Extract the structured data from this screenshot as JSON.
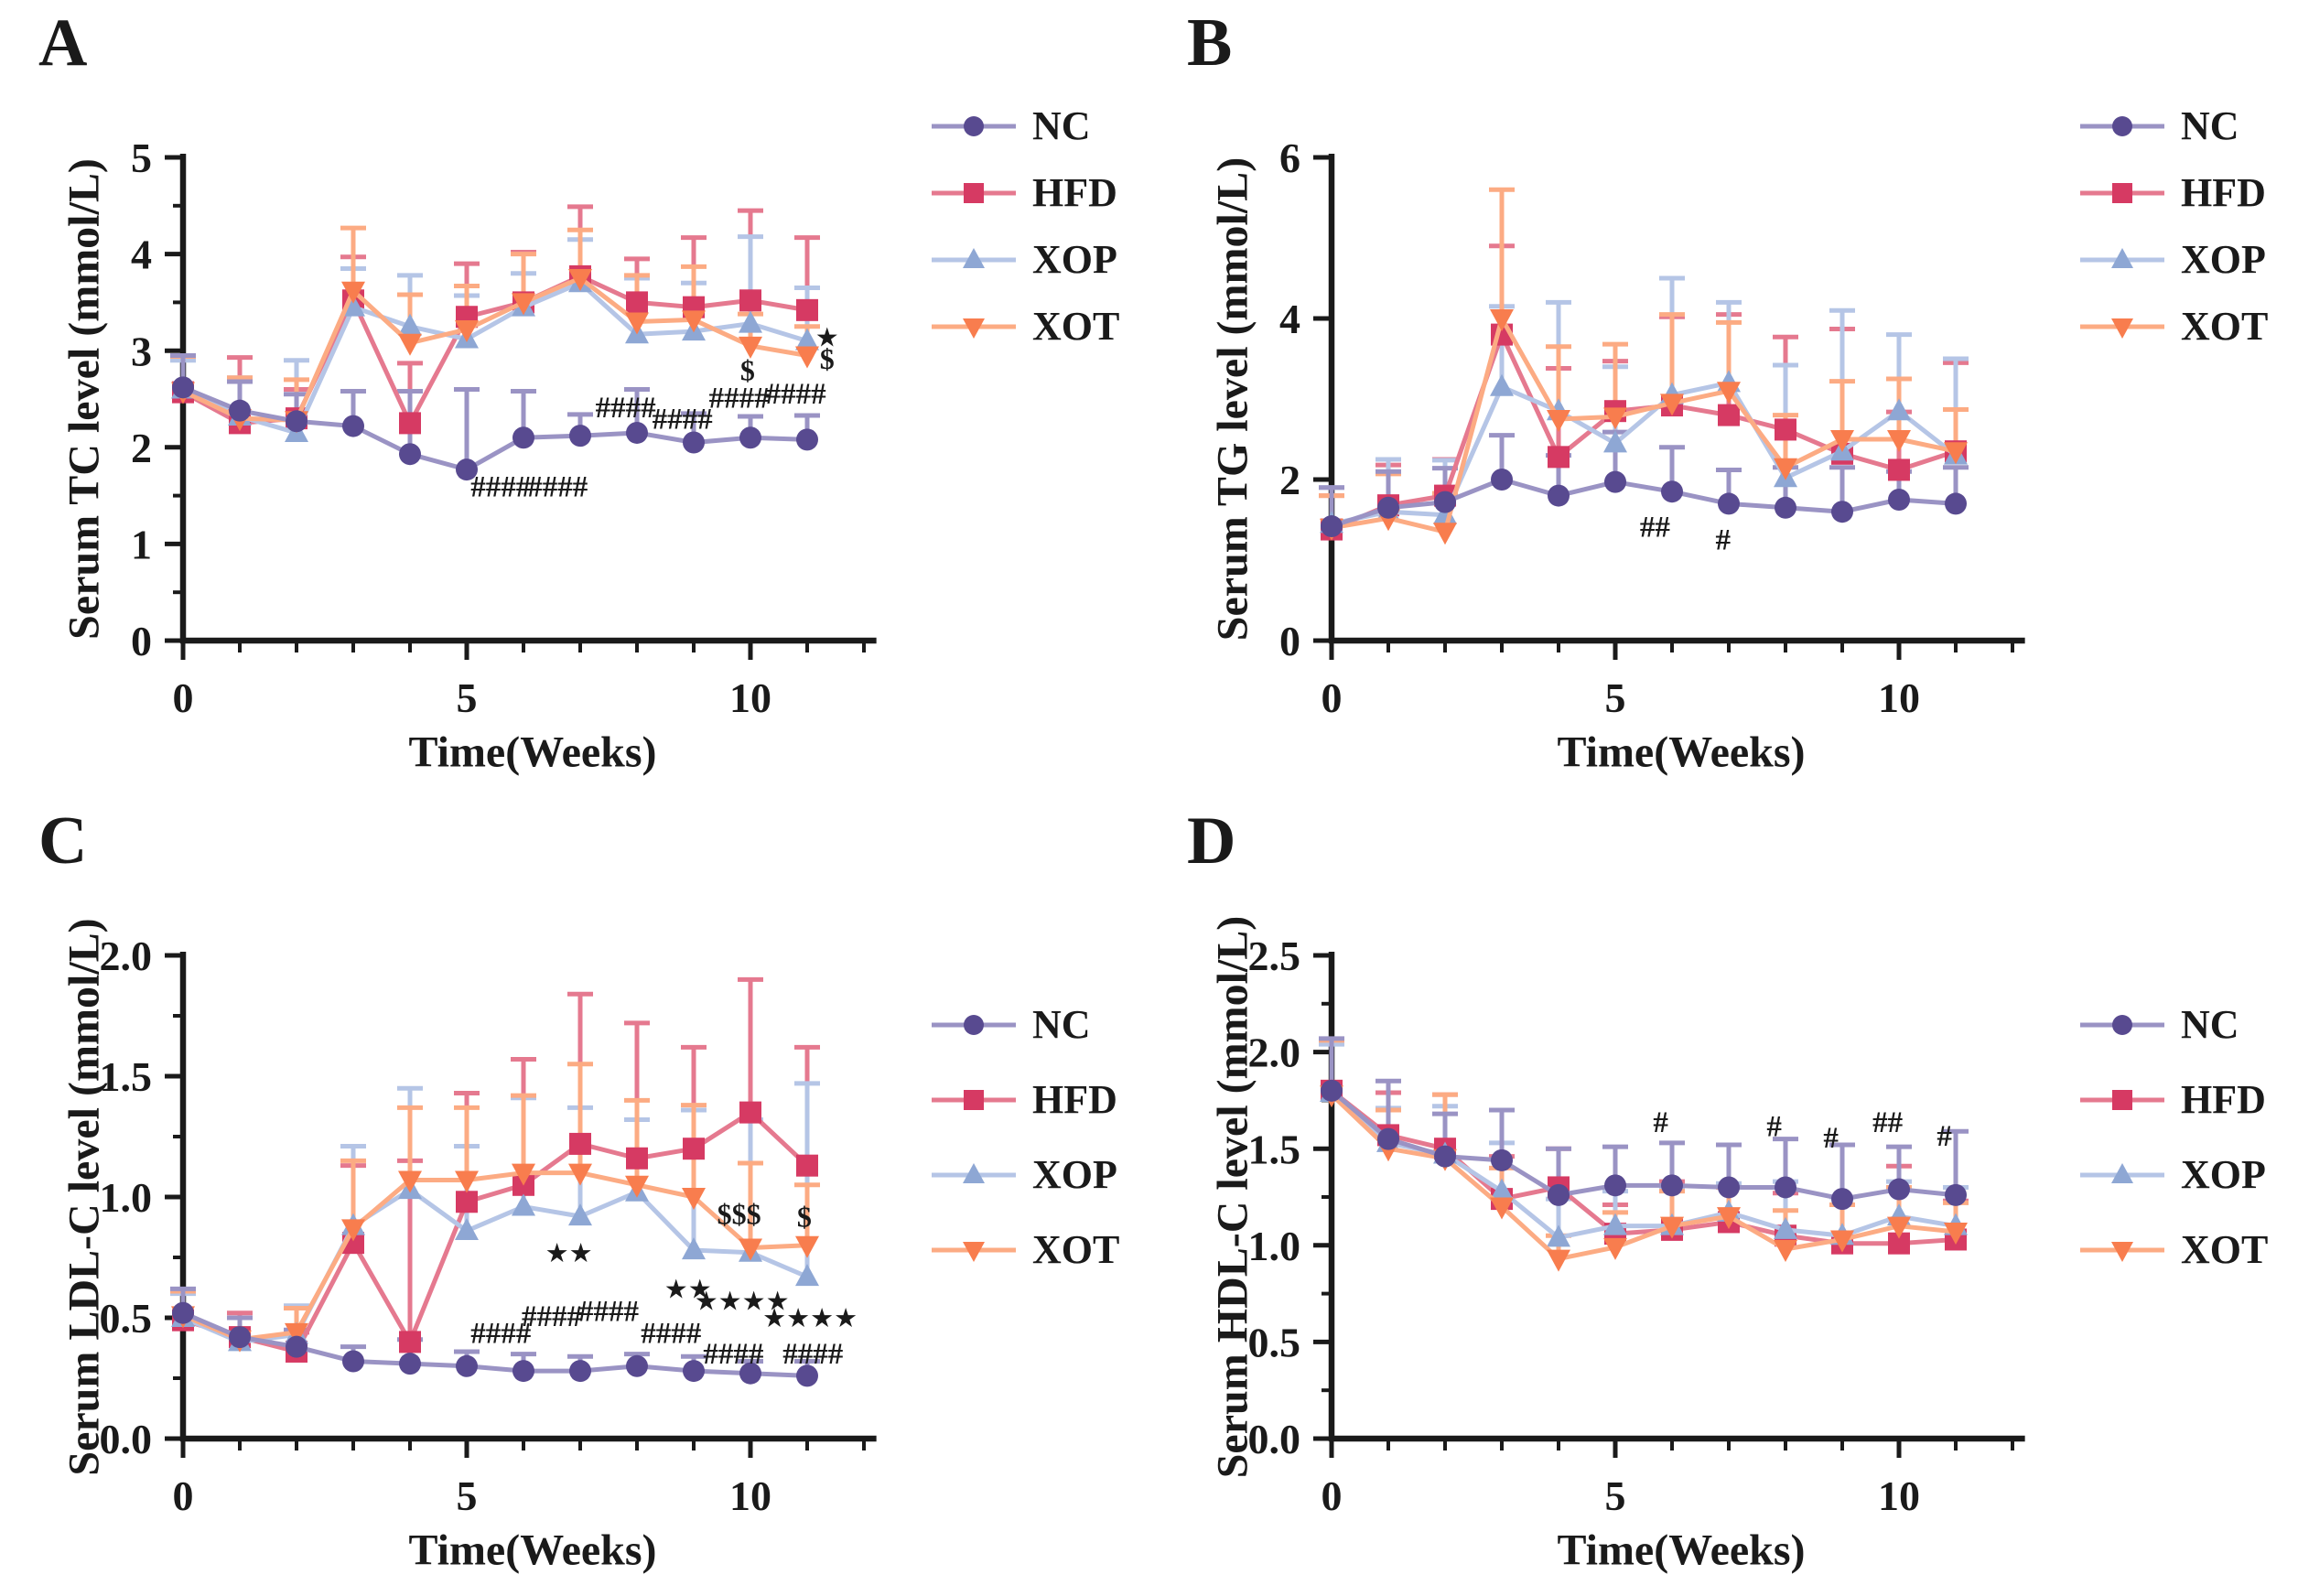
{
  "figure": {
    "background": "#ffffff",
    "panel_count": 4
  },
  "colors": {
    "axis": "#1a1a1a",
    "NC": {
      "marker": "#584a90",
      "line": "#9a93c4"
    },
    "HFD": {
      "marker": "#d63a63",
      "line": "#e5798f"
    },
    "XOP": {
      "marker": "#8ea7d4",
      "line": "#b5c5e6"
    },
    "XOT": {
      "marker": "#f87d4e",
      "line": "#fcab83"
    }
  },
  "legend": {
    "position": "right",
    "entries": [
      {
        "id": "NC",
        "label": "NC",
        "marker": "circle"
      },
      {
        "id": "HFD",
        "label": "HFD",
        "marker": "square"
      },
      {
        "id": "XOP",
        "label": "XOP",
        "marker": "triangle-up"
      },
      {
        "id": "XOT",
        "label": "XOT",
        "marker": "triangle-down"
      }
    ]
  },
  "chart_data": [
    {
      "id": "A",
      "letter": "A",
      "type": "line",
      "ylabel": "Serum TC level (mmol/L)",
      "xlabel": "Time(Weeks)",
      "ylim": [
        0,
        5
      ],
      "yticks": {
        "values": [
          0,
          1,
          2,
          3,
          4,
          5
        ],
        "labels": [
          "0",
          "1",
          "2",
          "3",
          "4",
          "5"
        ]
      },
      "yminor": 0.5,
      "xticks": {
        "major_values": [
          0,
          5,
          10
        ],
        "labels": [
          "0",
          "5",
          "10"
        ],
        "minor_step": 1,
        "max": 12
      },
      "x": [
        0,
        1,
        2,
        3,
        4,
        5,
        6,
        7,
        8,
        9,
        10,
        11
      ],
      "series": [
        {
          "name": "NC",
          "marker": "circle",
          "values": [
            2.62,
            2.38,
            2.27,
            2.22,
            1.93,
            1.77,
            2.1,
            2.12,
            2.15,
            2.05,
            2.1,
            2.08
          ],
          "err": [
            0.33,
            0.3,
            0.28,
            0.36,
            0.65,
            0.83,
            0.48,
            0.22,
            0.45,
            0.3,
            0.22,
            0.25
          ]
        },
        {
          "name": "HFD",
          "marker": "square",
          "values": [
            2.57,
            2.25,
            2.3,
            3.52,
            2.25,
            3.35,
            3.5,
            3.77,
            3.5,
            3.45,
            3.52,
            3.42
          ],
          "err": [
            0.38,
            0.68,
            0.3,
            0.45,
            0.62,
            0.55,
            0.52,
            0.72,
            0.45,
            0.72,
            0.93,
            0.75
          ]
        },
        {
          "name": "XOP",
          "marker": "triangle-up",
          "values": [
            2.6,
            2.32,
            2.15,
            3.45,
            3.25,
            3.12,
            3.45,
            3.7,
            3.17,
            3.2,
            3.28,
            3.1
          ],
          "err": [
            0.3,
            0.4,
            0.75,
            0.4,
            0.53,
            0.45,
            0.35,
            0.45,
            0.58,
            0.5,
            0.9,
            0.55
          ]
        },
        {
          "name": "XOT",
          "marker": "triangle-down",
          "values": [
            2.58,
            2.3,
            2.28,
            3.62,
            3.08,
            3.22,
            3.5,
            3.75,
            3.3,
            3.32,
            3.05,
            2.95
          ],
          "err": [
            0.36,
            0.42,
            0.42,
            0.65,
            0.5,
            0.45,
            0.5,
            0.5,
            0.48,
            0.55,
            0.33,
            0.3
          ]
        }
      ],
      "annotations": [
        {
          "text": "####",
          "x": 5.6,
          "y": 1.6
        },
        {
          "text": "####",
          "x": 6.6,
          "y": 1.6
        },
        {
          "text": "####",
          "x": 7.8,
          "y": 2.42
        },
        {
          "text": "####",
          "x": 8.8,
          "y": 2.3
        },
        {
          "text": "####",
          "x": 9.8,
          "y": 2.52
        },
        {
          "text": "####",
          "x": 10.8,
          "y": 2.56
        },
        {
          "text": "$",
          "x": 9.95,
          "y": 2.8
        },
        {
          "text": "*",
          "x": 11.35,
          "y": 3.14
        },
        {
          "text": "$",
          "x": 11.35,
          "y": 2.92
        }
      ]
    },
    {
      "id": "B",
      "letter": "B",
      "type": "line",
      "ylabel": "Serum TG level (mmol/L)",
      "xlabel": "Time(Weeks)",
      "ylim": [
        0,
        6
      ],
      "yticks": {
        "values": [
          0,
          2,
          4,
          6
        ],
        "labels": [
          "0",
          "2",
          "4",
          "6"
        ]
      },
      "yminor": null,
      "xticks": {
        "major_values": [
          0,
          5,
          10
        ],
        "labels": [
          "0",
          "5",
          "10"
        ],
        "minor_step": 1,
        "max": 12
      },
      "x": [
        0,
        1,
        2,
        3,
        4,
        5,
        6,
        7,
        8,
        9,
        10,
        11
      ],
      "series": [
        {
          "name": "NC",
          "marker": "circle",
          "values": [
            1.42,
            1.65,
            1.72,
            2.0,
            1.8,
            1.97,
            1.85,
            1.7,
            1.65,
            1.6,
            1.75,
            1.7
          ],
          "err": [
            0.48,
            0.45,
            0.42,
            0.55,
            0.5,
            0.62,
            0.55,
            0.42,
            0.5,
            0.55,
            0.35,
            0.45
          ]
        },
        {
          "name": "HFD",
          "marker": "square",
          "values": [
            1.38,
            1.68,
            1.8,
            3.8,
            2.28,
            2.85,
            2.92,
            2.8,
            2.62,
            2.32,
            2.12,
            2.35
          ],
          "err": [
            0.42,
            0.5,
            0.45,
            1.1,
            1.1,
            0.62,
            1.1,
            1.25,
            1.15,
            1.55,
            0.72,
            1.1
          ]
        },
        {
          "name": "XOP",
          "marker": "triangle-up",
          "values": [
            1.45,
            1.6,
            1.56,
            3.15,
            2.85,
            2.45,
            3.05,
            3.2,
            2.02,
            2.35,
            2.85,
            2.3
          ],
          "err": [
            0.45,
            0.65,
            0.68,
            1.0,
            1.35,
            0.95,
            1.45,
            1.0,
            1.4,
            1.75,
            0.95,
            1.2
          ]
        },
        {
          "name": "XOT",
          "marker": "triangle-down",
          "values": [
            1.4,
            1.52,
            1.35,
            4.0,
            2.75,
            2.78,
            2.95,
            3.1,
            2.15,
            2.5,
            2.5,
            2.35
          ],
          "err": [
            0.4,
            0.55,
            0.48,
            1.6,
            0.9,
            0.9,
            1.1,
            0.85,
            0.65,
            0.72,
            0.75,
            0.52
          ]
        }
      ],
      "annotations": [
        {
          "text": "##",
          "x": 5.7,
          "y": 1.42
        },
        {
          "text": "#",
          "x": 6.9,
          "y": 1.26
        }
      ]
    },
    {
      "id": "C",
      "letter": "C",
      "type": "line",
      "ylabel": "Serum LDL-C level (mmol/L)",
      "xlabel": "Time(Weeks)",
      "ylim": [
        0,
        2.0
      ],
      "yticks": {
        "values": [
          0,
          0.5,
          1.0,
          1.5,
          2.0
        ],
        "labels": [
          "0.0",
          "0.5",
          "1.0",
          "1.5",
          "2.0"
        ]
      },
      "yminor": 0.25,
      "xticks": {
        "major_values": [
          0,
          5,
          10
        ],
        "labels": [
          "0",
          "5",
          "10"
        ],
        "minor_step": 1,
        "max": 12
      },
      "x": [
        0,
        1,
        2,
        3,
        4,
        5,
        6,
        7,
        8,
        9,
        10,
        11
      ],
      "series": [
        {
          "name": "NC",
          "marker": "circle",
          "values": [
            0.52,
            0.42,
            0.38,
            0.32,
            0.31,
            0.3,
            0.28,
            0.28,
            0.3,
            0.28,
            0.27,
            0.26
          ],
          "err": [
            0.1,
            0.08,
            0.07,
            0.06,
            0.1,
            0.06,
            0.07,
            0.06,
            0.05,
            0.06,
            0.05,
            0.06
          ]
        },
        {
          "name": "HFD",
          "marker": "square",
          "values": [
            0.49,
            0.42,
            0.36,
            0.81,
            0.4,
            0.98,
            1.05,
            1.22,
            1.16,
            1.2,
            1.35,
            1.13
          ],
          "err": [
            0.12,
            0.1,
            0.08,
            0.32,
            0.75,
            0.45,
            0.52,
            0.62,
            0.56,
            0.42,
            0.55,
            0.49
          ]
        },
        {
          "name": "XOP",
          "marker": "triangle-up",
          "values": [
            0.5,
            0.4,
            0.43,
            0.88,
            1.03,
            0.86,
            0.96,
            0.92,
            1.02,
            0.78,
            0.77,
            0.67
          ],
          "err": [
            0.1,
            0.1,
            0.12,
            0.33,
            0.42,
            0.35,
            0.45,
            0.45,
            0.3,
            0.58,
            0.55,
            0.8
          ]
        },
        {
          "name": "XOT",
          "marker": "triangle-down",
          "values": [
            0.51,
            0.41,
            0.44,
            0.87,
            1.07,
            1.07,
            1.1,
            1.1,
            1.05,
            1.0,
            0.79,
            0.8
          ],
          "err": [
            0.1,
            0.09,
            0.1,
            0.28,
            0.3,
            0.3,
            0.32,
            0.45,
            0.35,
            0.38,
            0.35,
            0.25
          ]
        }
      ],
      "annotations": [
        {
          "text": "####",
          "x": 5.6,
          "y": 0.44
        },
        {
          "text": "####",
          "x": 6.5,
          "y": 0.51
        },
        {
          "text": "####",
          "x": 7.5,
          "y": 0.53
        },
        {
          "text": "####",
          "x": 8.6,
          "y": 0.44
        },
        {
          "text": "####",
          "x": 9.7,
          "y": 0.355
        },
        {
          "text": "####",
          "x": 11.1,
          "y": 0.355
        },
        {
          "text": "**",
          "x": 6.8,
          "y": 0.77
        },
        {
          "text": "**",
          "x": 8.9,
          "y": 0.62
        },
        {
          "text": "****",
          "x": 9.85,
          "y": 0.57
        },
        {
          "text": "****",
          "x": 11.05,
          "y": 0.5
        },
        {
          "text": "$$$",
          "x": 9.8,
          "y": 0.93
        },
        {
          "text": "$",
          "x": 10.95,
          "y": 0.92
        }
      ]
    },
    {
      "id": "D",
      "letter": "D",
      "type": "line",
      "ylabel": "Serum HDL-C level (mmol/L)",
      "xlabel": "Time(Weeks)",
      "ylim": [
        0,
        2.5
      ],
      "yticks": {
        "values": [
          0,
          0.5,
          1.0,
          1.5,
          2.0,
          2.5
        ],
        "labels": [
          "0.0",
          "0.5",
          "1.0",
          "1.5",
          "2.0",
          "2.5"
        ]
      },
      "yminor": 0.25,
      "xticks": {
        "major_values": [
          0,
          5,
          10
        ],
        "labels": [
          "0",
          "5",
          "10"
        ],
        "minor_step": 1,
        "max": 12
      },
      "x": [
        0,
        1,
        2,
        3,
        4,
        5,
        6,
        7,
        8,
        9,
        10,
        11
      ],
      "series": [
        {
          "name": "NC",
          "marker": "circle",
          "values": [
            1.8,
            1.55,
            1.46,
            1.44,
            1.26,
            1.31,
            1.31,
            1.3,
            1.3,
            1.24,
            1.29,
            1.26
          ],
          "err": [
            0.27,
            0.3,
            0.22,
            0.26,
            0.24,
            0.2,
            0.22,
            0.22,
            0.25,
            0.28,
            0.22,
            0.33
          ]
        },
        {
          "name": "HFD",
          "marker": "square",
          "values": [
            1.8,
            1.57,
            1.5,
            1.24,
            1.3,
            1.06,
            1.08,
            1.12,
            1.05,
            1.01,
            1.01,
            1.03
          ],
          "err": [
            0.26,
            0.22,
            0.28,
            0.22,
            0.2,
            0.15,
            0.25,
            0.18,
            0.22,
            0.2,
            0.4,
            0.2
          ]
        },
        {
          "name": "XOP",
          "marker": "triangle-up",
          "values": [
            1.79,
            1.53,
            1.47,
            1.28,
            1.04,
            1.1,
            1.1,
            1.17,
            1.08,
            1.05,
            1.15,
            1.1
          ],
          "err": [
            0.25,
            0.18,
            0.25,
            0.25,
            0.2,
            0.18,
            0.2,
            0.15,
            0.25,
            0.2,
            0.18,
            0.2
          ]
        },
        {
          "name": "XOT",
          "marker": "triangle-down",
          "values": [
            1.78,
            1.5,
            1.45,
            1.2,
            0.93,
            0.99,
            1.1,
            1.15,
            0.98,
            1.03,
            1.1,
            1.07
          ],
          "err": [
            0.28,
            0.2,
            0.33,
            0.2,
            0.12,
            0.18,
            0.18,
            0.15,
            0.2,
            0.18,
            0.2,
            0.15
          ]
        }
      ],
      "annotations": [
        {
          "text": "#",
          "x": 5.8,
          "y": 1.64
        },
        {
          "text": "#",
          "x": 7.8,
          "y": 1.62
        },
        {
          "text": "#",
          "x": 8.8,
          "y": 1.56
        },
        {
          "text": "##",
          "x": 9.8,
          "y": 1.64
        },
        {
          "text": "#",
          "x": 10.8,
          "y": 1.57
        }
      ]
    }
  ]
}
